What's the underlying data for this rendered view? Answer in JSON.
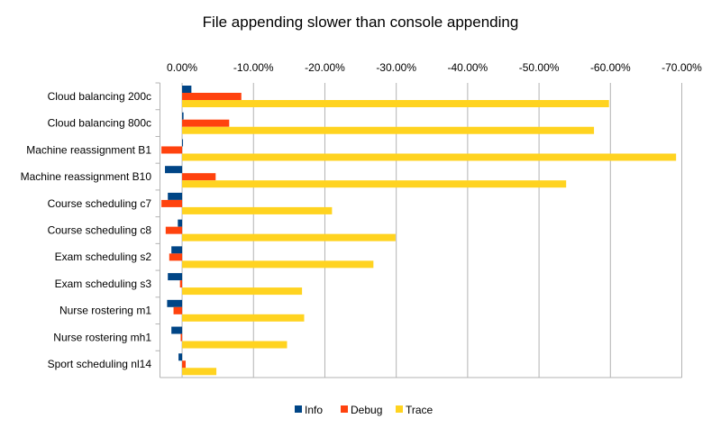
{
  "chart_data": {
    "type": "bar",
    "orientation": "horizontal",
    "title": "File appending slower than console appending",
    "categories": [
      "Cloud balancing 200c",
      "Cloud balancing 800c",
      "Machine reassignment B1",
      "Machine reassignment B10",
      "Course scheduling c7",
      "Course scheduling c8",
      "Exam scheduling s2",
      "Exam scheduling s3",
      "Nurse rostering m1",
      "Nurse rostering mh1",
      "Sport scheduling nl14"
    ],
    "series": [
      {
        "name": "Info",
        "color": "#004586",
        "values": [
          -1.3,
          -0.2,
          0.0,
          2.4,
          2.0,
          0.6,
          1.5,
          2.0,
          2.1,
          1.5,
          0.5
        ]
      },
      {
        "name": "Debug",
        "color": "#ff420e",
        "values": [
          -8.3,
          -6.6,
          2.9,
          -4.7,
          2.9,
          2.3,
          1.8,
          0.3,
          1.2,
          0.2,
          -0.5
        ]
      },
      {
        "name": "Trace",
        "color": "#ffd320",
        "values": [
          -59.8,
          -57.7,
          -69.2,
          -53.8,
          -21.0,
          -29.9,
          -26.8,
          -16.8,
          -17.1,
          -14.7,
          -4.8
        ]
      }
    ],
    "xticks": [
      "0.00%",
      "-10.00%",
      "-20.00%",
      "-30.00%",
      "-40.00%",
      "-50.00%",
      "-60.00%",
      "-70.00%"
    ],
    "xtick_values": [
      0,
      -10,
      -20,
      -30,
      -40,
      -50,
      -60,
      -70
    ],
    "xlim": [
      3.1,
      -70
    ],
    "axis_reversed": true,
    "grid": true,
    "legend": "bottom"
  }
}
